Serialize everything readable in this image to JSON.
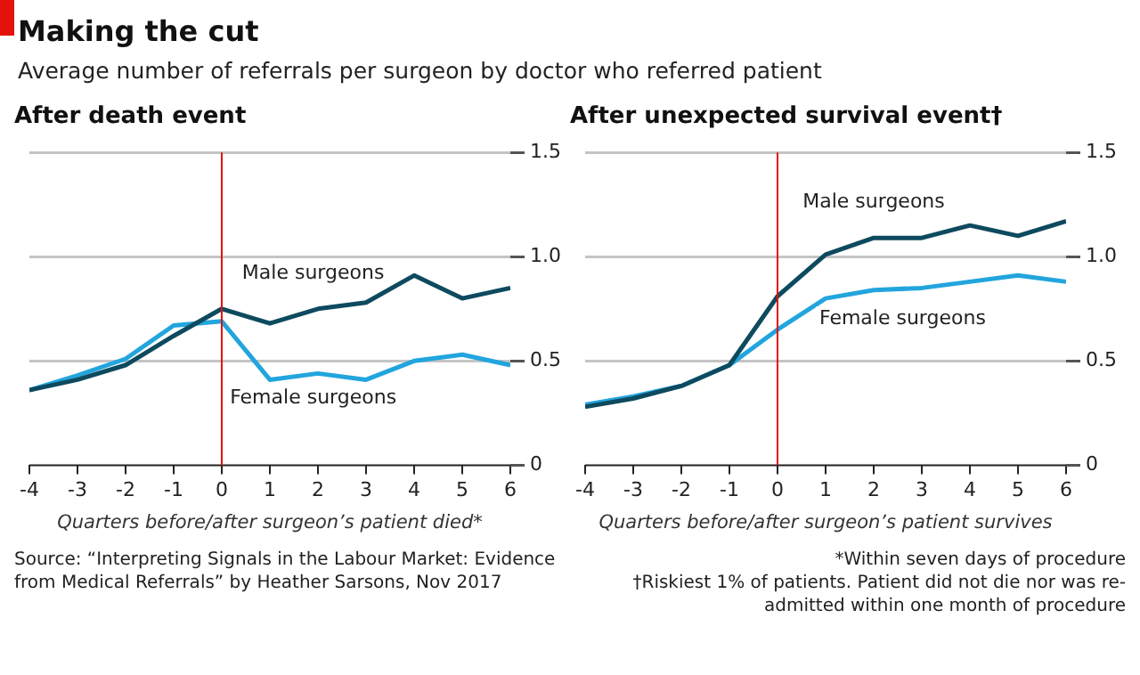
{
  "chart_data": [
    {
      "type": "other",
      "title": "Making the cut",
      "subtitle": "Average number of referrals per surgeon by doctor who referred patient"
    },
    {
      "type": "line",
      "title": "After death event",
      "xlabel": "Quarters before/after surgeon’s patient died*",
      "x": [
        -4,
        -3,
        -2,
        -1,
        0,
        1,
        2,
        3,
        4,
        5,
        6
      ],
      "series": [
        {
          "name": "Male surgeons",
          "color": "#0e4a5f",
          "values": [
            0.36,
            0.41,
            0.48,
            0.62,
            0.75,
            0.68,
            0.75,
            0.78,
            0.91,
            0.8,
            0.85
          ]
        },
        {
          "name": "Female surgeons",
          "color": "#22a5dd",
          "values": [
            0.36,
            0.43,
            0.51,
            0.67,
            0.69,
            0.41,
            0.44,
            0.41,
            0.5,
            0.53,
            0.48
          ]
        }
      ],
      "xlim": [
        -4,
        6
      ],
      "xticks": [
        -4,
        -3,
        -2,
        -1,
        0,
        1,
        2,
        3,
        4,
        5,
        6
      ],
      "ylim": [
        0,
        1.5
      ],
      "yticks": [
        0,
        0.5,
        {
          "value": 1,
          "label": "1.0"
        },
        1.5
      ],
      "grid": "y",
      "legend": false,
      "marker": "none",
      "line_style": "solid",
      "ref_lines": [
        {
          "axis": "x",
          "value": 0,
          "color": "#e3120b"
        }
      ],
      "annotations": [
        "Source: “Interpreting Signals in the Labour Market: Evidence from Medical Referrals” by Heather Sarsons, Nov 2017"
      ]
    },
    {
      "type": "line",
      "title": "After unexpected survival event†",
      "xlabel": "Quarters before/after surgeon’s patient survives",
      "x": [
        -4,
        -3,
        -2,
        -1,
        0,
        1,
        2,
        3,
        4,
        5,
        6
      ],
      "series": [
        {
          "name": "Male surgeons",
          "color": "#0e4a5f",
          "values": [
            0.28,
            0.32,
            0.38,
            0.48,
            0.81,
            1.01,
            1.09,
            1.09,
            1.15,
            1.1,
            1.17
          ]
        },
        {
          "name": "Female surgeons",
          "color": "#22a5dd",
          "values": [
            0.29,
            0.33,
            0.38,
            0.48,
            0.65,
            0.8,
            0.84,
            0.85,
            0.88,
            0.91,
            0.88
          ]
        }
      ],
      "xlim": [
        -4,
        6
      ],
      "xticks": [
        -4,
        -3,
        -2,
        -1,
        0,
        1,
        2,
        3,
        4,
        5,
        6
      ],
      "ylim": [
        0,
        1.5
      ],
      "yticks": [
        0,
        0.5,
        {
          "value": 1,
          "label": "1.0"
        },
        1.5
      ],
      "grid": "y",
      "legend": false,
      "marker": "none",
      "line_style": "solid",
      "ref_lines": [
        {
          "axis": "x",
          "value": 0,
          "color": "#e3120b"
        }
      ],
      "annotations": [
        "*Within seven days of procedure",
        "†Riskiest 1% of patients. Patient did not die nor was re-admitted within one month of procedure"
      ]
    }
  ]
}
